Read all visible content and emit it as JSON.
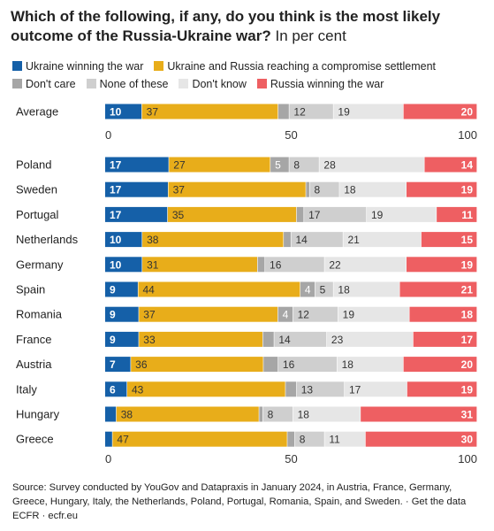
{
  "title": {
    "question": "Which of the following, if any, do you think is the most likely outcome of the Russia-Ukraine war?",
    "unit": "In per cent"
  },
  "legend": [
    {
      "name": "Ukraine winning the war",
      "color": "#1560a8"
    },
    {
      "name": "Ukraine and Russia reaching a compromise settlement",
      "color": "#e8ad1a"
    },
    {
      "name": "Don't care",
      "color": "#a6a6a6"
    },
    {
      "name": "None of these",
      "color": "#cfcfcf"
    },
    {
      "name": "Don't know",
      "color": "#e6e6e6"
    },
    {
      "name": "Russia winning the war",
      "color": "#ee5f62"
    }
  ],
  "chart_data": {
    "type": "bar",
    "orientation": "horizontal",
    "stacked": true,
    "xlim": [
      0,
      100
    ],
    "x_ticks": [
      "0",
      "50",
      "100"
    ],
    "series_names": [
      "Ukraine winning the war",
      "Ukraine and Russia reaching a compromise settlement",
      "Don't care",
      "None of these",
      "Don't know",
      "Russia winning the war"
    ],
    "average": {
      "label": "Average",
      "values": [
        10,
        37,
        3,
        12,
        19,
        20
      ],
      "labels": [
        "10",
        "37",
        "",
        "12",
        "19",
        "20"
      ]
    },
    "countries": [
      {
        "label": "Poland",
        "values": [
          17,
          27,
          5,
          8,
          28,
          14
        ],
        "labels": [
          "17",
          "27",
          "5",
          "8",
          "28",
          "14"
        ]
      },
      {
        "label": "Sweden",
        "values": [
          17,
          37,
          1,
          8,
          18,
          19
        ],
        "labels": [
          "17",
          "37",
          "",
          "8",
          "18",
          "19"
        ]
      },
      {
        "label": "Portugal",
        "values": [
          17,
          35,
          2,
          17,
          19,
          11
        ],
        "labels": [
          "17",
          "35",
          "",
          "17",
          "19",
          "11"
        ]
      },
      {
        "label": "Netherlands",
        "values": [
          10,
          38,
          2,
          14,
          21,
          15
        ],
        "labels": [
          "10",
          "38",
          "",
          "14",
          "21",
          "15"
        ]
      },
      {
        "label": "Germany",
        "values": [
          10,
          31,
          2,
          16,
          22,
          19
        ],
        "labels": [
          "10",
          "31",
          "",
          "16",
          "22",
          "19"
        ]
      },
      {
        "label": "Spain",
        "values": [
          9,
          44,
          4,
          5,
          18,
          21
        ],
        "labels": [
          "9",
          "44",
          "4",
          "5",
          "18",
          "21"
        ]
      },
      {
        "label": "Romania",
        "values": [
          9,
          37,
          4,
          12,
          19,
          18
        ],
        "labels": [
          "9",
          "37",
          "4",
          "12",
          "19",
          "18"
        ]
      },
      {
        "label": "France",
        "values": [
          9,
          33,
          3,
          14,
          23,
          17
        ],
        "labels": [
          "9",
          "33",
          "",
          "14",
          "23",
          "17"
        ]
      },
      {
        "label": "Austria",
        "values": [
          7,
          36,
          4,
          16,
          18,
          20
        ],
        "labels": [
          "7",
          "36",
          "",
          "16",
          "18",
          "20"
        ]
      },
      {
        "label": "Italy",
        "values": [
          6,
          43,
          3,
          13,
          17,
          19
        ],
        "labels": [
          "6",
          "43",
          "",
          "13",
          "17",
          "19"
        ]
      },
      {
        "label": "Hungary",
        "values": [
          3,
          38,
          1,
          8,
          18,
          31
        ],
        "labels": [
          "",
          "38",
          "",
          "8",
          "18",
          "31"
        ]
      },
      {
        "label": "Greece",
        "values": [
          2,
          47,
          2,
          8,
          11,
          30
        ],
        "labels": [
          "",
          "47",
          "",
          "8",
          "11",
          "30"
        ]
      }
    ]
  },
  "source": {
    "text": "Source: Survey conducted by YouGov and Datapraxis in January 2024, in Austria, France, Germany, Greece, Hungary, Italy, the Netherlands, Poland, Portugal, Romania, Spain, and Sweden. · Get the data",
    "credit": "ECFR · ecfr.eu"
  }
}
